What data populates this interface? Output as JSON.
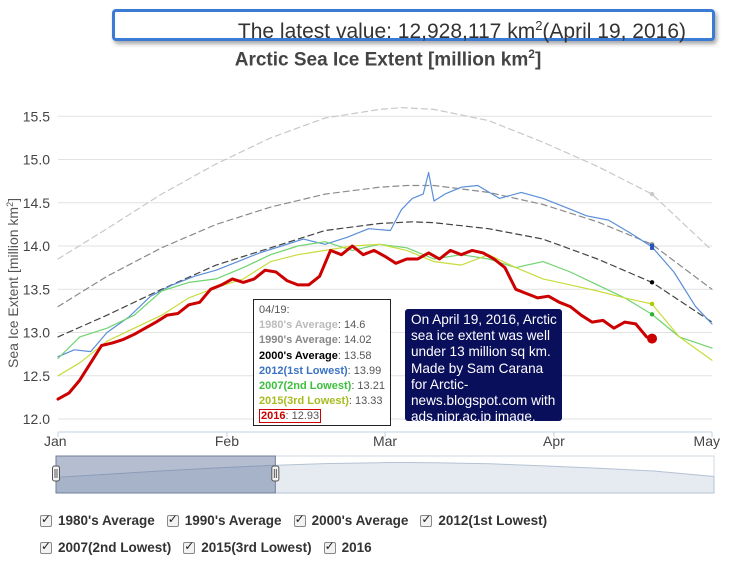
{
  "header": {
    "latest_prefix": "The latest value: 12,928,117 km",
    "latest_sup": "2",
    "latest_suffix": "(April 19, 2016)"
  },
  "chart_data": {
    "type": "line",
    "title": "Arctic Sea Ice Extent [million km",
    "title_sup": "2",
    "title_end": "]",
    "ylabel": "Sea Ice Extent [million km",
    "ylabel_sup": "2",
    "ylabel_end": "]",
    "ylim": [
      11.85,
      15.85
    ],
    "yticks": [
      12.0,
      12.5,
      13.0,
      13.5,
      14.0,
      14.5,
      15.0,
      15.5
    ],
    "ytick_labels": [
      "12.0",
      "12.5",
      "13.0",
      "13.5",
      "14.0",
      "14.5",
      "15.0",
      "15.5"
    ],
    "xlim": [
      1,
      121
    ],
    "xticks": [
      1,
      32,
      61,
      92,
      121
    ],
    "xtick_labels": [
      "Jan",
      "Feb",
      "Mar",
      "Apr",
      "May"
    ],
    "series": [
      {
        "name": "1980's Average",
        "color": "#c8c8c8",
        "dash": "6,4",
        "width": 1.2,
        "marker_day": 110,
        "marker_value": 14.6,
        "x": [
          1,
          10,
          20,
          30,
          40,
          50,
          60,
          64,
          70,
          80,
          90,
          100,
          110,
          121
        ],
        "y": [
          13.85,
          14.2,
          14.6,
          14.95,
          15.25,
          15.48,
          15.58,
          15.6,
          15.58,
          15.45,
          15.2,
          14.92,
          14.6,
          13.95
        ]
      },
      {
        "name": "1990's Average",
        "color": "#8c8c8c",
        "dash": "6,4",
        "width": 1.2,
        "marker_day": 110,
        "marker_value": 14.02,
        "x": [
          1,
          10,
          20,
          30,
          40,
          50,
          60,
          65,
          70,
          80,
          90,
          100,
          110,
          121
        ],
        "y": [
          13.3,
          13.65,
          13.98,
          14.25,
          14.45,
          14.6,
          14.68,
          14.7,
          14.7,
          14.62,
          14.48,
          14.28,
          14.02,
          13.5
        ]
      },
      {
        "name": "2000's Average",
        "color": "#444444",
        "dash": "6,4",
        "width": 1.2,
        "marker_day": 110,
        "marker_value": 13.58,
        "x": [
          1,
          10,
          20,
          30,
          40,
          50,
          60,
          66,
          70,
          80,
          90,
          100,
          110,
          121
        ],
        "y": [
          12.95,
          13.2,
          13.5,
          13.78,
          13.98,
          14.18,
          14.26,
          14.28,
          14.27,
          14.2,
          14.08,
          13.85,
          13.58,
          13.12
        ]
      },
      {
        "name": "2012(1st Lowest)",
        "color": "#5a8fd8",
        "dash": "",
        "width": 1.2,
        "marker_day": 110,
        "marker_value": 13.99,
        "x": [
          1,
          4,
          7,
          10,
          14,
          18,
          22,
          26,
          30,
          34,
          38,
          42,
          46,
          50,
          54,
          58,
          62,
          64,
          66,
          68,
          69,
          70,
          72,
          75,
          78,
          82,
          86,
          90,
          94,
          98,
          102,
          106,
          110,
          114,
          118,
          121
        ],
        "y": [
          12.72,
          12.8,
          12.78,
          13.0,
          13.18,
          13.42,
          13.55,
          13.65,
          13.72,
          13.82,
          13.92,
          14.0,
          14.08,
          14.02,
          14.1,
          14.2,
          14.18,
          14.42,
          14.55,
          14.6,
          14.85,
          14.52,
          14.6,
          14.68,
          14.7,
          14.55,
          14.62,
          14.55,
          14.45,
          14.35,
          14.3,
          14.15,
          13.99,
          13.7,
          13.3,
          13.1
        ]
      },
      {
        "name": "2007(2nd Lowest)",
        "color": "#6fd46f",
        "dash": "",
        "width": 1.2,
        "marker_day": 110,
        "marker_value": 13.21,
        "x": [
          1,
          5,
          10,
          15,
          20,
          25,
          30,
          35,
          40,
          45,
          50,
          55,
          60,
          65,
          70,
          75,
          80,
          85,
          90,
          95,
          100,
          105,
          110,
          115,
          121
        ],
        "y": [
          12.7,
          12.95,
          13.05,
          13.2,
          13.48,
          13.58,
          13.62,
          13.75,
          13.9,
          14.0,
          14.05,
          13.95,
          14.02,
          13.98,
          13.85,
          13.9,
          13.85,
          13.75,
          13.82,
          13.7,
          13.55,
          13.4,
          13.21,
          12.95,
          12.82
        ]
      },
      {
        "name": "2015(3rd Lowest)",
        "color": "#c8dc3c",
        "dash": "",
        "width": 1.2,
        "marker_day": 110,
        "marker_value": 13.33,
        "x": [
          1,
          5,
          10,
          15,
          20,
          25,
          30,
          35,
          40,
          45,
          50,
          55,
          60,
          65,
          70,
          75,
          80,
          85,
          90,
          95,
          100,
          105,
          110,
          115,
          121
        ],
        "y": [
          12.5,
          12.65,
          12.9,
          13.05,
          13.2,
          13.4,
          13.52,
          13.62,
          13.82,
          13.9,
          13.95,
          14.0,
          14.02,
          13.95,
          13.82,
          13.78,
          13.9,
          13.75,
          13.62,
          13.55,
          13.48,
          13.4,
          13.33,
          12.95,
          12.68
        ]
      },
      {
        "name": "2016",
        "color": "#cc0000",
        "dash": "",
        "width": 3,
        "marker_day": 110,
        "marker_value": 12.93,
        "x": [
          1,
          3,
          5,
          7,
          9,
          11,
          13,
          15,
          17,
          19,
          21,
          23,
          25,
          27,
          29,
          31,
          33,
          35,
          37,
          39,
          41,
          43,
          45,
          47,
          49,
          51,
          53,
          55,
          57,
          59,
          61,
          63,
          65,
          67,
          69,
          71,
          73,
          75,
          77,
          79,
          81,
          83,
          85,
          87,
          89,
          91,
          93,
          95,
          97,
          99,
          101,
          103,
          105,
          107,
          109,
          110
        ],
        "y": [
          12.23,
          12.3,
          12.45,
          12.65,
          12.85,
          12.88,
          12.92,
          12.98,
          13.05,
          13.12,
          13.2,
          13.22,
          13.32,
          13.35,
          13.5,
          13.55,
          13.62,
          13.58,
          13.62,
          13.72,
          13.7,
          13.6,
          13.55,
          13.55,
          13.65,
          13.95,
          13.9,
          14.0,
          13.9,
          13.95,
          13.88,
          13.8,
          13.85,
          13.85,
          13.92,
          13.85,
          13.95,
          13.9,
          13.95,
          13.92,
          13.85,
          13.75,
          13.5,
          13.45,
          13.4,
          13.42,
          13.35,
          13.3,
          13.2,
          13.12,
          13.14,
          13.05,
          13.12,
          13.1,
          12.95,
          12.93
        ]
      }
    ],
    "tooltip": {
      "date": "04/19:",
      "rows": [
        {
          "label": "1980's Average",
          "value": "14.6",
          "color": "#bbbbbb"
        },
        {
          "label": "1990's Average",
          "value": "14.02",
          "color": "#888888"
        },
        {
          "label": "2000's Average",
          "value": "13.58",
          "color": "#000000"
        },
        {
          "label": "2012(1st Lowest)",
          "value": "13.99",
          "color": "#3a72c4"
        },
        {
          "label": "2007(2nd Lowest)",
          "value": "13.21",
          "color": "#3cc03c"
        },
        {
          "label": "2015(3rd Lowest)",
          "value": "13.33",
          "color": "#a8bc20"
        },
        {
          "label": "2016",
          "value": "12.93",
          "color": "#cc0000"
        }
      ]
    },
    "annotation": "On April 19, 2016, Arctic sea ice extent was well under 13 million sq km. Made by Sam Carana for Arctic-news.blogspot.com with ads.nipr.ac.jp image.",
    "navigator": {
      "selected_from_day": 1,
      "selected_to_day": 41
    }
  },
  "legend": {
    "row1": [
      "1980's Average",
      "1990's Average",
      "2000's Average",
      "2012(1st Lowest)"
    ],
    "row2": [
      "2007(2nd Lowest)",
      "2015(3rd Lowest)",
      "2016"
    ]
  }
}
